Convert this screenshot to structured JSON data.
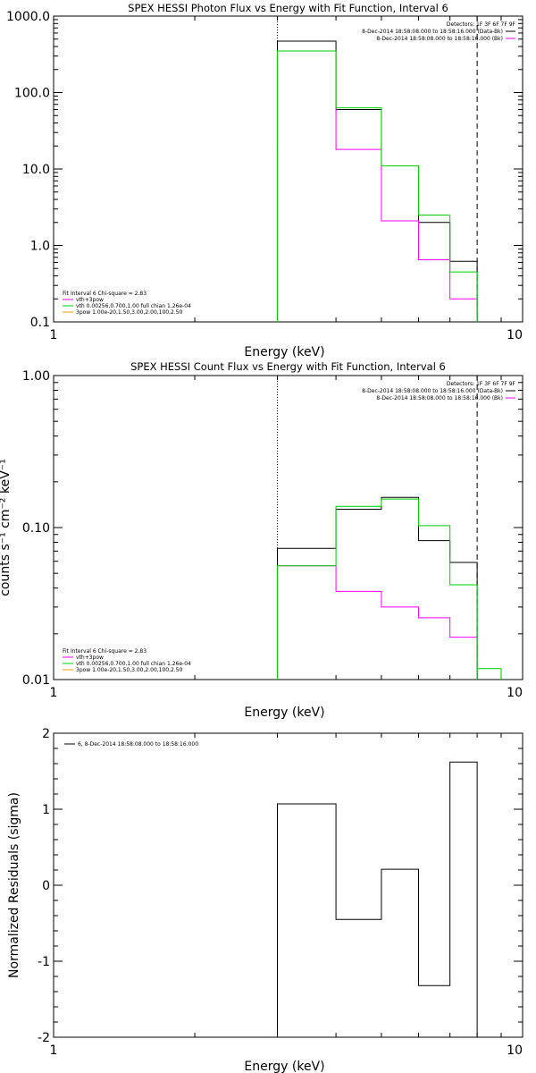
{
  "colors": {
    "data": "#000000",
    "bkg": "#ff00ff",
    "fit": "#00cc00",
    "spec": "#e0a000"
  },
  "chart_data": [
    {
      "type": "line",
      "title": "SPEX HESSI Photon Flux vs Energy with Fit Function, Interval 6",
      "xlabel": "Energy (keV)",
      "ylabel": "",
      "xscale": "log",
      "yscale": "log",
      "xlim": [
        1,
        10
      ],
      "ylim": [
        0.1,
        1000
      ],
      "xticks": [
        "1",
        "10"
      ],
      "yticks": [
        {
          "v": 1000,
          "label": "1000.0"
        },
        {
          "v": 100,
          "label": "100.0"
        },
        {
          "v": 10,
          "label": "10.0"
        },
        {
          "v": 1,
          "label": "1.0"
        },
        {
          "v": 0.1,
          "label": "0.1"
        }
      ],
      "vlines": [
        {
          "x": 3.0,
          "style": "dotted"
        },
        {
          "x": 8.0,
          "style": "dashed"
        }
      ],
      "edges": [
        3.0,
        4.0,
        5.0,
        6.0,
        7.0,
        8.0
      ],
      "series": [
        {
          "key": "data",
          "values": [
            470,
            60,
            11,
            2.0,
            0.62
          ]
        },
        {
          "key": "bkg",
          "values": [
            350,
            18,
            2.1,
            0.65,
            0.2
          ]
        },
        {
          "key": "fit",
          "values": [
            350,
            63,
            11,
            2.5,
            0.45
          ]
        }
      ],
      "legend_tr": [
        "Detectors: 1F 3F 6F 7F 9F",
        "8-Dec-2014 18:58:08.000 to 18:58:16.000 (Data-Bk)",
        "8-Dec-2014 18:58:08.000 to 18:58:16.000 (Bk)"
      ],
      "legend_bl": [
        "Fit Interval 6   Chi-square = 2.83",
        "vth+3pow",
        "vth 0.00256,0.700,1.00  full chian 1.26e-04",
        "3pow 1.00e-20,1.50,3.00,2.00,100,2.50"
      ]
    },
    {
      "type": "line",
      "title": "SPEX HESSI Count Flux vs Energy with Fit Function, Interval 6",
      "xlabel": "Energy (keV)",
      "ylabel": "counts s⁻¹ cm⁻² keV⁻¹",
      "xscale": "log",
      "yscale": "log",
      "xlim": [
        1,
        10
      ],
      "ylim": [
        0.01,
        1
      ],
      "xticks": [
        "1",
        "10"
      ],
      "yticks": [
        {
          "v": 1,
          "label": "1.00"
        },
        {
          "v": 0.1,
          "label": "0.10"
        },
        {
          "v": 0.01,
          "label": "0.01"
        }
      ],
      "vlines": [
        {
          "x": 3.0,
          "style": "dotted"
        },
        {
          "x": 8.0,
          "style": "dashed"
        }
      ],
      "edges": [
        3.0,
        4.0,
        5.0,
        6.0,
        7.0,
        8.0
      ],
      "series": [
        {
          "key": "data",
          "values": [
            0.073,
            0.132,
            0.158,
            0.082,
            0.059
          ]
        },
        {
          "key": "bkg",
          "values": [
            0.056,
            0.038,
            0.03,
            0.0255,
            0.019
          ]
        },
        {
          "key": "fit",
          "values": [
            0.056,
            0.138,
            0.154,
            0.103,
            0.042
          ],
          "extra": {
            "from": 8.0,
            "to": 9.0,
            "value": 0.0118
          }
        }
      ],
      "legend_tr": [
        "Detectors: 1F 3F 6F 7F 9F",
        "8-Dec-2014 18:58:08.000 to 18:58:16.000 (Data-Bk)",
        "8-Dec-2014 18:58:08.000 to 18:58:16.000 (Bk)"
      ],
      "legend_bl": [
        "Fit Interval 6   Chi-square = 2.83",
        "vth+3pow",
        "vth 0.00256,0.700,1.00  full chian 1.26e-04",
        "3pow 1.00e-20,1.50,3.00,2.00,100,2.50"
      ]
    },
    {
      "type": "line",
      "title": "",
      "xlabel": "Energy (keV)",
      "ylabel": "Normalized Residuals (sigma)",
      "xscale": "log",
      "yscale": "linear",
      "xlim": [
        1,
        10
      ],
      "ylim": [
        -2,
        2
      ],
      "xticks": [
        "1",
        "10"
      ],
      "yticks": [
        {
          "v": 2,
          "label": "2"
        },
        {
          "v": 1,
          "label": "1"
        },
        {
          "v": 0,
          "label": "0"
        },
        {
          "v": -1,
          "label": "-1"
        },
        {
          "v": -2,
          "label": "-2"
        }
      ],
      "edges": [
        3.0,
        4.0,
        5.0,
        6.0,
        7.0,
        8.0
      ],
      "series": [
        {
          "key": "data",
          "values": [
            1.07,
            -0.45,
            0.21,
            -1.32,
            1.62
          ]
        }
      ],
      "legend_line": "6,  8-Dec-2014 18:58:08.000 to 18:58:16.000"
    }
  ]
}
